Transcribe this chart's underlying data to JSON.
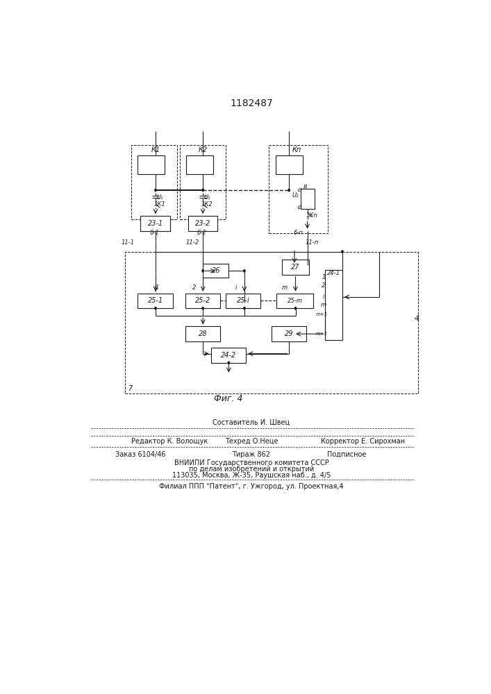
{
  "title": "1182487",
  "fig_label": "Фиг. 4",
  "background_color": "#ffffff",
  "line_color": "#1a1a1a",
  "box_color": "#ffffff",
  "page_number": "4"
}
